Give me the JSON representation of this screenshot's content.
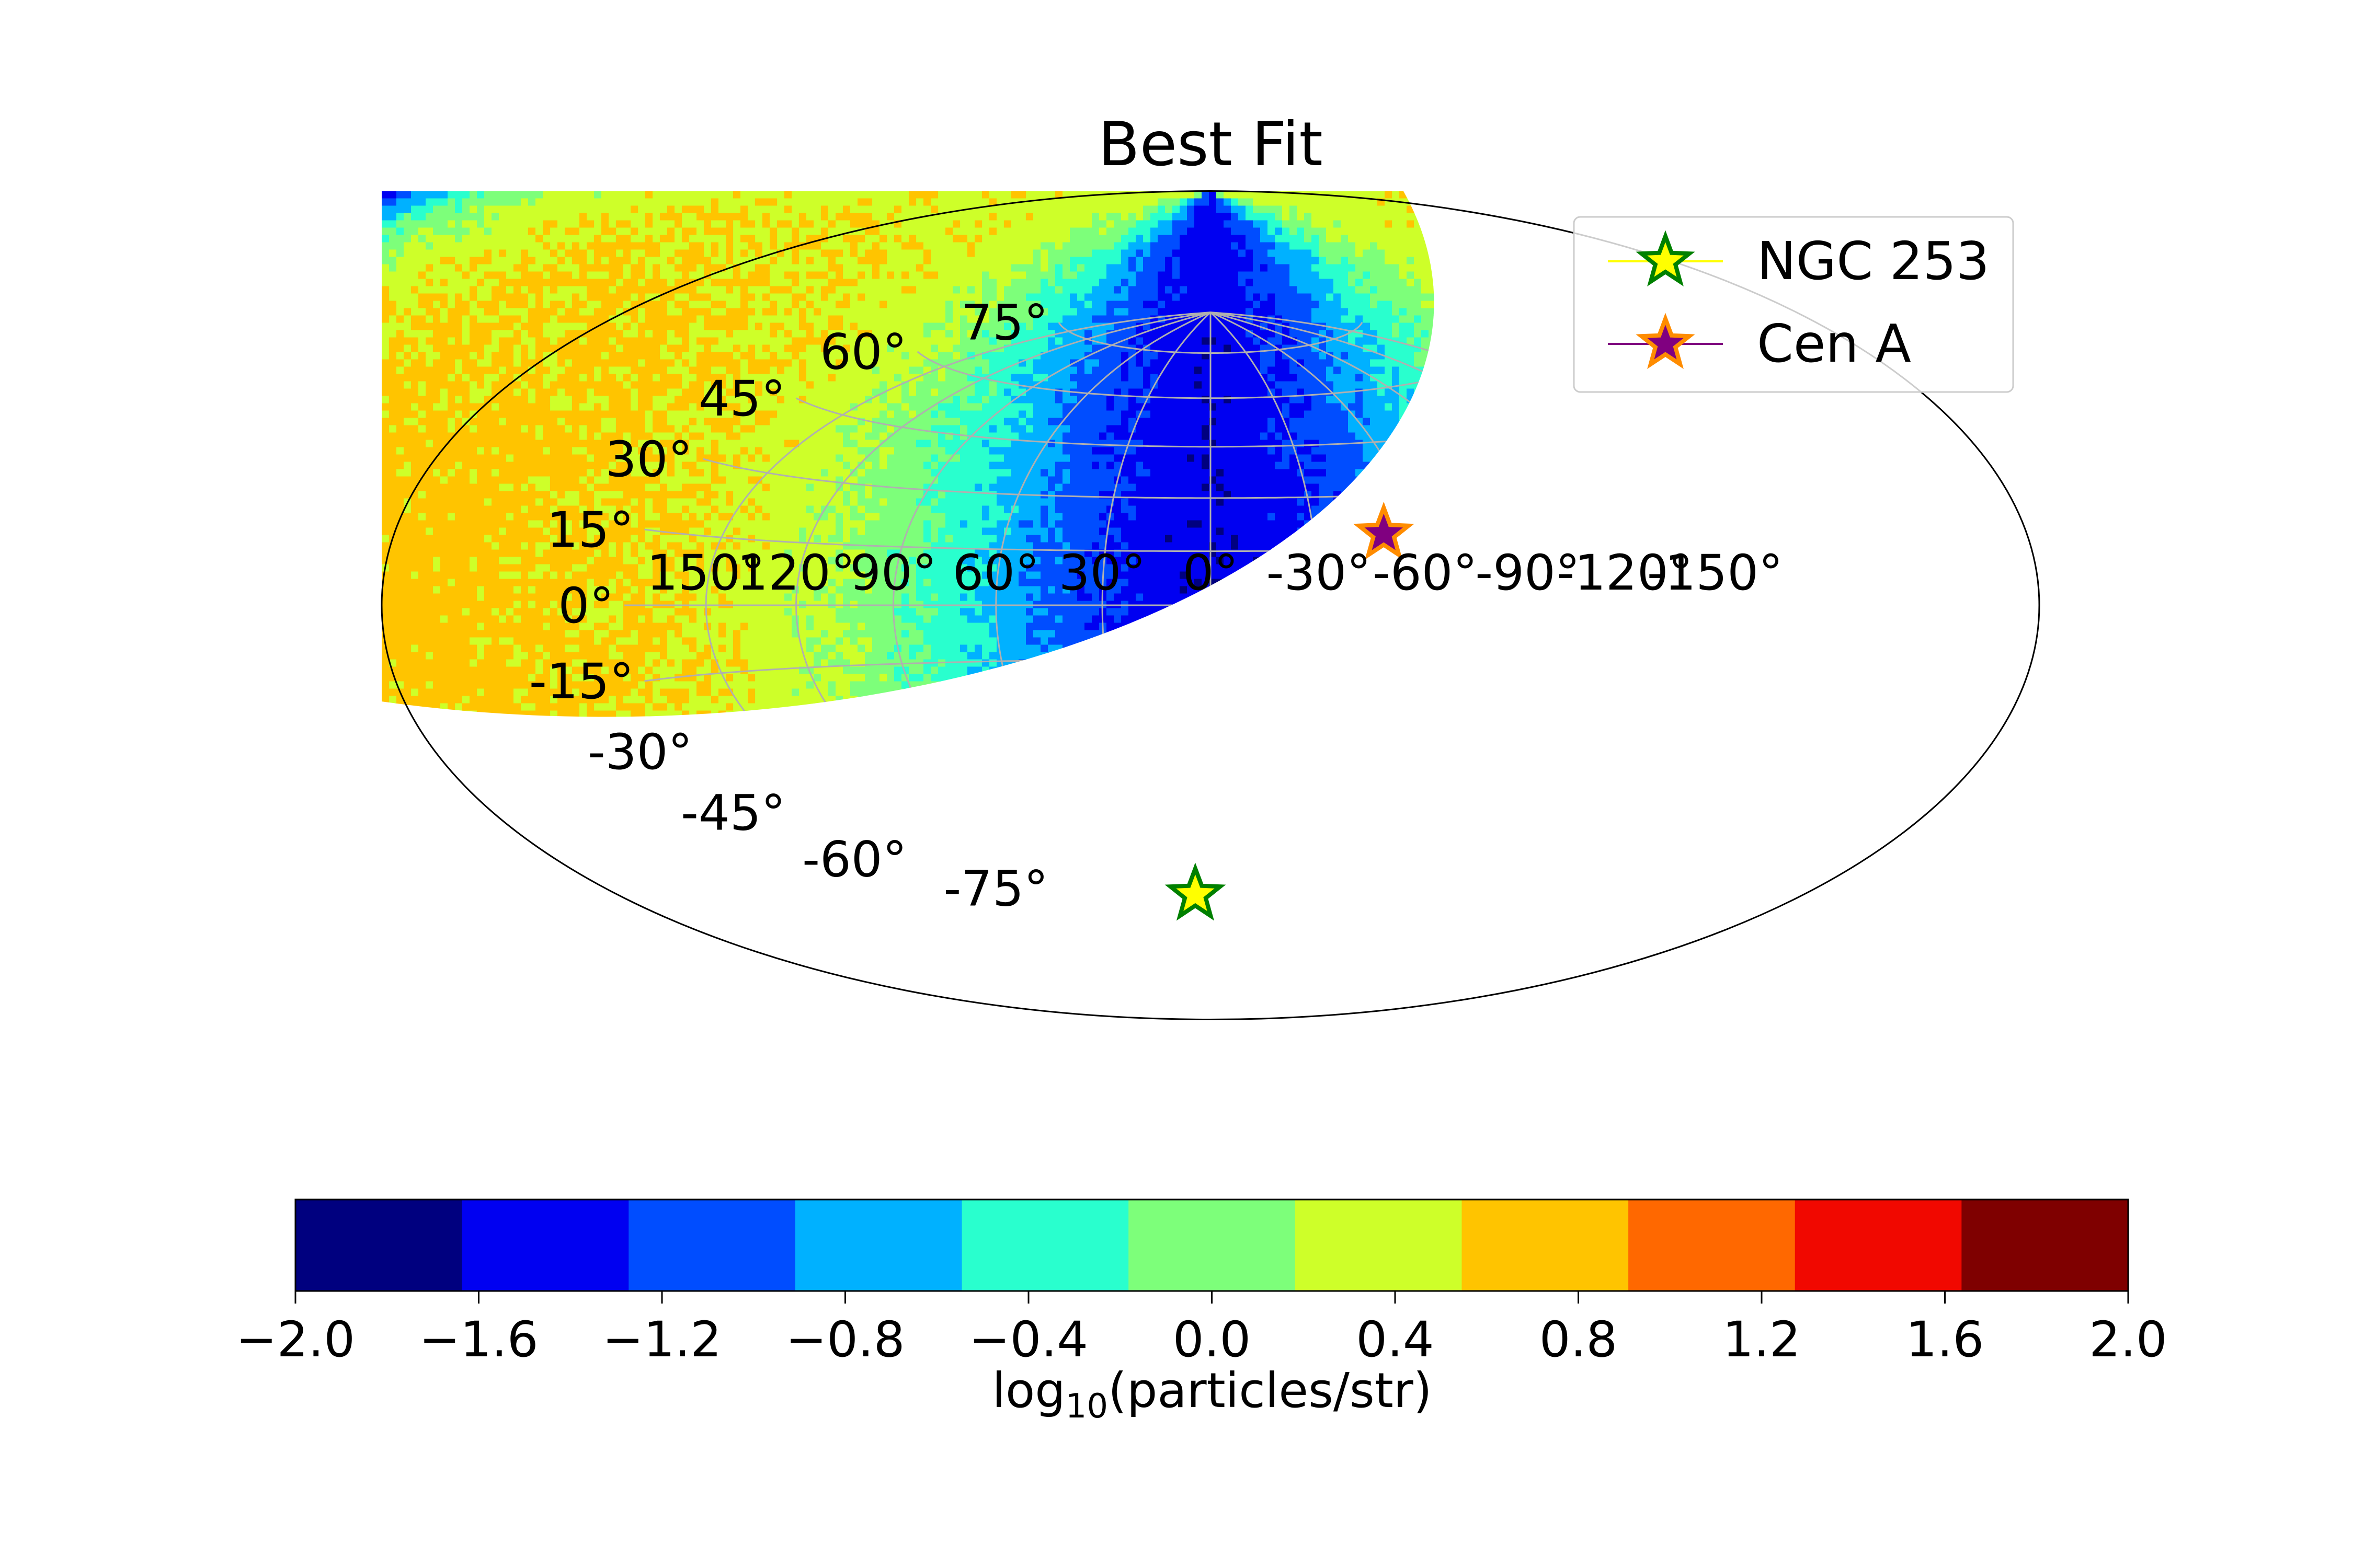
{
  "chart_data": {
    "type": "heatmap",
    "projection": "hammer",
    "title": "Best Fit",
    "colorbar": {
      "label_main": "log",
      "label_sub": "10",
      "label_rest": "(particles/str)",
      "range": [
        -2.0,
        2.0
      ],
      "levels": 11,
      "colors": [
        "#00007f",
        "#0000f1",
        "#004dff",
        "#00b1ff",
        "#29ffce",
        "#7dff7a",
        "#ceff29",
        "#ffc400",
        "#ff6800",
        "#f10800",
        "#7f0000"
      ],
      "tick_values": [
        -2.0,
        -1.6,
        -1.2,
        -0.8,
        -0.4,
        0.0,
        0.4,
        0.8,
        1.2,
        1.6,
        2.0
      ],
      "tick_labels": [
        "−2.0",
        "−1.6",
        "−1.2",
        "−0.8",
        "−0.4",
        "0.0",
        "0.4",
        "0.8",
        "1.2",
        "1.6",
        "2.0"
      ]
    },
    "lon_ticks": [
      150,
      120,
      90,
      60,
      30,
      0,
      -30,
      -60,
      -90,
      -120,
      -150
    ],
    "lon_tick_labels": [
      "150°",
      "120°",
      "90°",
      "60°",
      "30°",
      "0°",
      "-30°",
      "-60°",
      "-90°",
      "-120°",
      "-150°"
    ],
    "lat_ticks": [
      75,
      60,
      45,
      30,
      15,
      0,
      -15,
      -30,
      -45,
      -60,
      -75
    ],
    "lat_tick_labels": [
      "75°",
      "60°",
      "45°",
      "30°",
      "15°",
      "0°",
      "-15°",
      "-30°",
      "-45°",
      "-60°",
      "-75°"
    ],
    "grid": true,
    "legend": {
      "placement": "upper-right",
      "entries": [
        {
          "name": "NGC 253",
          "face": "#ffff00",
          "edge": "#008000",
          "line": "#ffff00"
        },
        {
          "name": "Cen A",
          "face": "#800080",
          "edge": "#ff8c00",
          "line": "#800080"
        }
      ]
    },
    "points": [
      {
        "name": "NGC 253",
        "lon": 97.4,
        "lat": -88.0
      },
      {
        "name": "Cen A",
        "lon": -50.5,
        "lat": 19.4
      }
    ]
  }
}
